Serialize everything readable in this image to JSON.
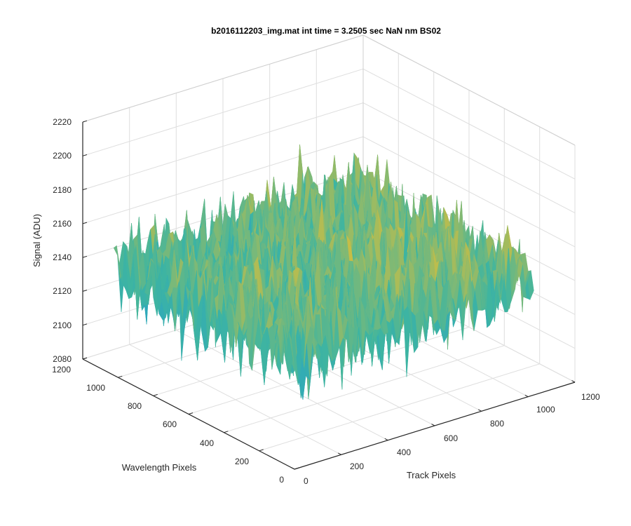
{
  "chart_data": {
    "type": "surface",
    "title": "b2016112203_img.mat int time = 3.2505 sec  NaN nm BS02",
    "xlabel": "Track Pixels",
    "ylabel": "Wavelength Pixels",
    "zlabel": "Signal (ADU)",
    "xlim": [
      0,
      1200
    ],
    "ylim": [
      0,
      1200
    ],
    "zlim": [
      2080,
      2220
    ],
    "xticks": [
      "0",
      "200",
      "400",
      "600",
      "800",
      "1000",
      "1200"
    ],
    "yticks": [
      "0",
      "200",
      "400",
      "600",
      "800",
      "1000",
      "1200"
    ],
    "zticks": [
      "2080",
      "2100",
      "2120",
      "2140",
      "2160",
      "2180",
      "2200",
      "2220"
    ],
    "grid": true,
    "colormap": "parula",
    "surface": {
      "extent_x": [
        0,
        1024
      ],
      "extent_y": [
        0,
        1024
      ],
      "base_level": 2143,
      "noise_range": [
        2085,
        2215
      ],
      "bands": [
        {
          "along": "y",
          "range": [
            0,
            512
          ],
          "offset": 3
        },
        {
          "along": "x",
          "range": [
            512,
            1024
          ],
          "offset": 4
        }
      ]
    }
  },
  "colors": {
    "low": "#1e9bd8",
    "mid": "#3fb5a0",
    "high": "#f0c02a"
  }
}
